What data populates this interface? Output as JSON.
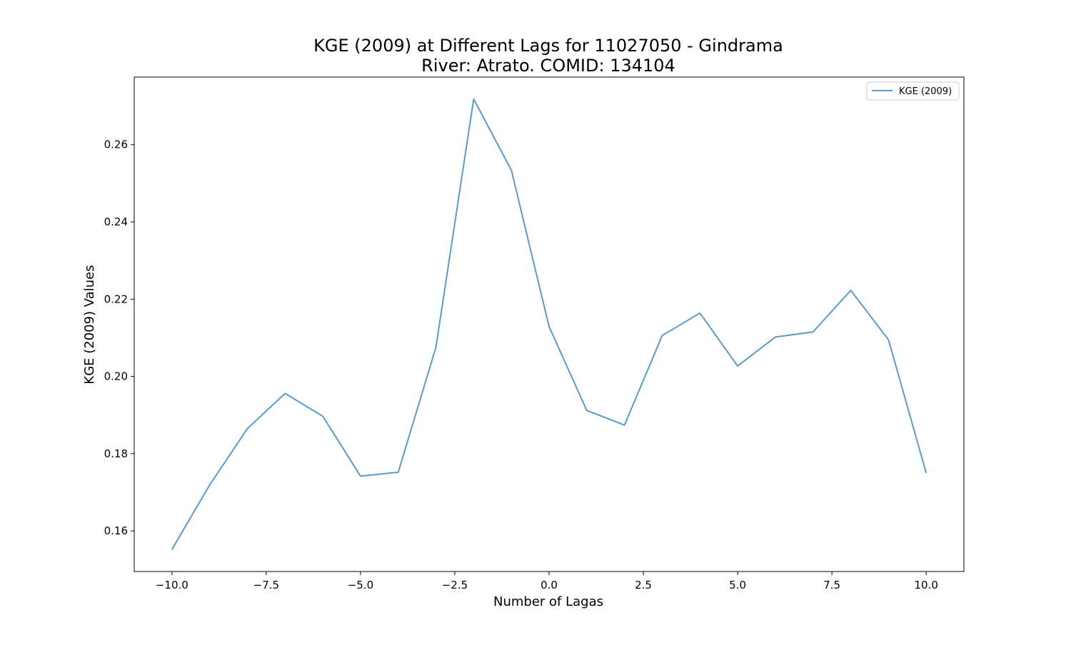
{
  "chart_data": {
    "type": "line",
    "title": "KGE (2009) at Different Lags for 11027050 - Gindrama",
    "subtitle": "River: Atrato. COMID: 134104",
    "xlabel": "Number of Lagas",
    "ylabel": "KGE (2009) Values",
    "xlim": [
      -11,
      11
    ],
    "ylim": [
      0.1495,
      0.2775
    ],
    "xticks": [
      -10.0,
      -7.5,
      -5.0,
      -2.5,
      0.0,
      2.5,
      5.0,
      7.5,
      10.0
    ],
    "xtick_labels": [
      "−10.0",
      "−7.5",
      "−5.0",
      "−2.5",
      "0.0",
      "2.5",
      "5.0",
      "7.5",
      "10.0"
    ],
    "yticks": [
      0.16,
      0.18,
      0.2,
      0.22,
      0.24,
      0.26
    ],
    "ytick_labels": [
      "0.16",
      "0.18",
      "0.20",
      "0.22",
      "0.24",
      "0.26"
    ],
    "grid": false,
    "legend": "top-right",
    "series": [
      {
        "name": "KGE (2009)",
        "color": "#5b9bc9",
        "x": [
          -10,
          -9,
          -8,
          -7,
          -6,
          -5,
          -4,
          -3,
          -2,
          -1,
          0,
          1,
          2,
          3,
          4,
          5,
          6,
          7,
          8,
          9,
          10
        ],
        "y": [
          0.1552,
          0.1719,
          0.1865,
          0.1956,
          0.1897,
          0.1742,
          0.1752,
          0.2075,
          0.2718,
          0.2534,
          0.2129,
          0.1912,
          0.1874,
          0.2106,
          0.2164,
          0.2027,
          0.2102,
          0.2115,
          0.2223,
          0.2095,
          0.175
        ]
      }
    ]
  }
}
